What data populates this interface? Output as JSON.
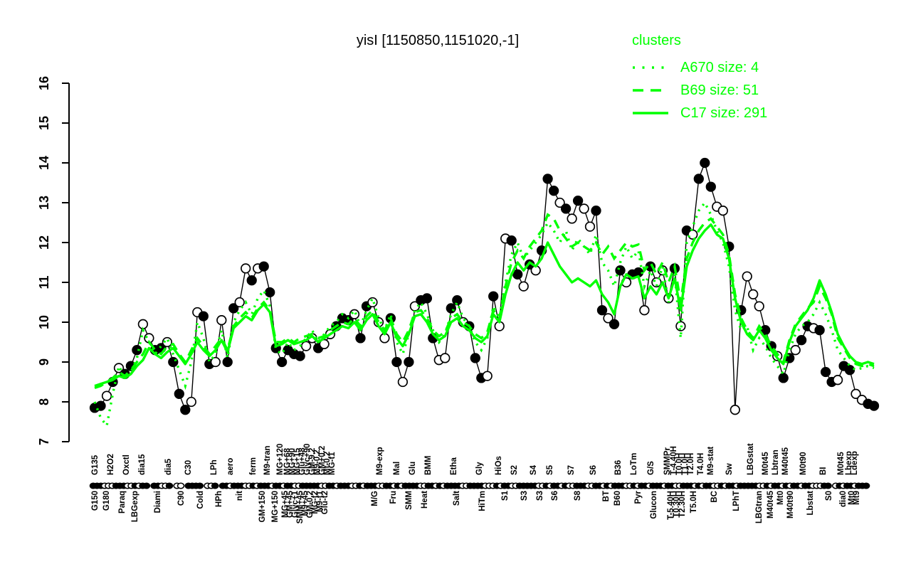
{
  "title": "yisI [1150850,1151020,-1]",
  "colors": {
    "cluster_green": "#00ff00",
    "series_black": "#000000",
    "background": "#ffffff"
  },
  "legend": {
    "title": "clusters",
    "items": [
      {
        "label": "A670 size: 4",
        "style": "dotted"
      },
      {
        "label": "B69 size: 51",
        "style": "dashed"
      },
      {
        "label": "C17 size: 291",
        "style": "solid"
      }
    ]
  },
  "y_axis": {
    "min": 7,
    "max": 16,
    "ticks": [
      7,
      8,
      9,
      10,
      11,
      12,
      13,
      14,
      15,
      16
    ]
  },
  "chart_data": {
    "type": "line",
    "title": "yisI [1150850,1151020,-1]",
    "ylabel": "",
    "xlabel": "",
    "ylim": [
      7,
      16
    ],
    "y_ticks": [
      7,
      8,
      9,
      10,
      11,
      12,
      13,
      14,
      15,
      16
    ],
    "grid": false,
    "legend_position": "top-right",
    "series": [
      {
        "name": "A670",
        "size": 4,
        "style": "dotted",
        "color": "#00ff00",
        "values": [
          8.0,
          7.6,
          7.4,
          8.2,
          8.9,
          8.6,
          8.75,
          9.1,
          9.8,
          9.5,
          9.2,
          9.4,
          9.6,
          9.2,
          8.8,
          8.4,
          9.0,
          10.0,
          9.6,
          9.0,
          9.2,
          9.8,
          9.1,
          10.0,
          10.3,
          10.5,
          10.2,
          10.6,
          10.8,
          10.4,
          9.3,
          9.2,
          9.5,
          9.3,
          9.4,
          9.6,
          9.8,
          9.5,
          9.7,
          9.9,
          10.0,
          10.2,
          10.1,
          10.3,
          9.9,
          10.3,
          10.6,
          10.1,
          9.8,
          10.2,
          9.5,
          9.2,
          9.7,
          10.3,
          10.5,
          10.2,
          9.8,
          9.5,
          9.7,
          10.2,
          10.5,
          10.1,
          9.9,
          9.5,
          9.3,
          9.6,
          10.4,
          10.1,
          11.0,
          11.7,
          12.0,
          11.6,
          11.8,
          12.0,
          12.2,
          12.5,
          12.3,
          12.0,
          12.3,
          11.8,
          12.1,
          11.9,
          11.7,
          12.2,
          11.5,
          11.3,
          10.9,
          11.5,
          11.9,
          11.6,
          11.8,
          10.9,
          11.3,
          10.9,
          11.4,
          10.5,
          11.2,
          9.6,
          12.0,
          12.4,
          12.8,
          13.0,
          12.7,
          12.3,
          12.0,
          11.4,
          10.3,
          9.8,
          9.9,
          9.3,
          9.6,
          9.4,
          9.1,
          8.9,
          8.7,
          9.3,
          9.7,
          9.9,
          10.0,
          10.2,
          10.5,
          10.2,
          9.8,
          9.3,
          9.1,
          8.9,
          8.8,
          8.85,
          8.9,
          8.85
        ]
      },
      {
        "name": "B69",
        "size": 51,
        "style": "dashed",
        "color": "#00ff00",
        "values": [
          8.35,
          8.4,
          8.5,
          8.6,
          8.75,
          8.65,
          8.8,
          9.0,
          9.2,
          9.5,
          9.3,
          9.2,
          9.4,
          9.45,
          9.2,
          9.0,
          9.3,
          9.6,
          9.4,
          9.2,
          9.4,
          9.6,
          9.3,
          9.9,
          10.1,
          10.25,
          10.1,
          10.35,
          10.5,
          10.3,
          9.5,
          9.5,
          9.6,
          9.5,
          9.6,
          9.65,
          9.7,
          9.6,
          9.65,
          9.8,
          9.9,
          10.0,
          9.95,
          10.1,
          9.9,
          10.15,
          10.3,
          10.0,
          9.8,
          10.1,
          9.7,
          9.5,
          9.8,
          10.25,
          10.3,
          10.1,
          9.8,
          9.65,
          9.75,
          10.1,
          10.2,
          10.0,
          9.9,
          9.7,
          9.6,
          9.75,
          10.3,
          10.1,
          10.9,
          11.5,
          11.8,
          11.6,
          11.9,
          12.1,
          12.3,
          12.7,
          12.6,
          12.3,
          12.1,
          11.9,
          12.0,
          11.9,
          11.8,
          12.0,
          11.7,
          11.9,
          11.6,
          11.8,
          12.0,
          11.9,
          11.95,
          11.3,
          11.5,
          11.2,
          11.5,
          11.0,
          11.4,
          10.5,
          11.6,
          12.0,
          12.3,
          12.5,
          12.6,
          12.4,
          12.2,
          11.7,
          10.7,
          10.1,
          9.8,
          9.6,
          9.9,
          9.7,
          9.4,
          9.2,
          9.0,
          9.55,
          9.95,
          10.15,
          10.35,
          10.5,
          10.9,
          10.6,
          10.2,
          9.6,
          9.35,
          9.1,
          8.95,
          8.9,
          8.95,
          8.9
        ]
      },
      {
        "name": "C17",
        "size": 291,
        "style": "solid",
        "color": "#00ff00",
        "values": [
          8.4,
          8.45,
          8.5,
          8.55,
          8.65,
          8.6,
          8.7,
          8.9,
          9.05,
          9.35,
          9.2,
          9.1,
          9.25,
          9.35,
          9.15,
          8.95,
          9.2,
          9.5,
          9.3,
          9.15,
          9.3,
          9.55,
          9.25,
          9.85,
          10.0,
          10.15,
          10.05,
          10.3,
          10.45,
          10.25,
          9.4,
          9.45,
          9.55,
          9.45,
          9.5,
          9.55,
          9.65,
          9.5,
          9.6,
          9.7,
          9.8,
          9.9,
          9.85,
          10.0,
          9.8,
          10.05,
          10.2,
          9.9,
          9.7,
          10.0,
          9.6,
          9.4,
          9.7,
          10.15,
          10.2,
          10.0,
          9.7,
          9.55,
          9.65,
          10.0,
          10.1,
          9.9,
          9.8,
          9.6,
          9.5,
          9.65,
          10.2,
          10.0,
          10.7,
          11.2,
          11.5,
          11.3,
          11.5,
          11.4,
          11.6,
          12.0,
          11.7,
          11.4,
          11.2,
          11.0,
          11.1,
          11.0,
          10.9,
          11.05,
          10.7,
          10.5,
          10.2,
          10.9,
          11.2,
          11.1,
          11.15,
          10.6,
          10.9,
          10.7,
          11.0,
          10.6,
          11.1,
          10.3,
          11.4,
          11.8,
          12.1,
          12.3,
          12.45,
          12.2,
          12.1,
          11.6,
          10.6,
          10.0,
          9.7,
          9.55,
          9.8,
          9.6,
          9.3,
          9.1,
          8.95,
          9.5,
          9.9,
          10.1,
          10.3,
          10.6,
          11.05,
          10.7,
          10.25,
          9.7,
          9.4,
          9.15,
          9.0,
          8.95,
          9.0,
          8.95
        ]
      },
      {
        "name": "yisI",
        "style": "points",
        "color": "#000000",
        "values": [
          7.85,
          7.9,
          8.15,
          8.5,
          8.85,
          8.7,
          8.9,
          9.3,
          9.95,
          9.6,
          9.3,
          9.35,
          9.5,
          9.0,
          8.2,
          7.8,
          8.0,
          10.25,
          10.15,
          8.95,
          9.0,
          10.05,
          9.0,
          10.35,
          10.5,
          11.35,
          11.05,
          11.35,
          11.4,
          10.75,
          9.35,
          9.0,
          9.3,
          9.2,
          9.15,
          9.4,
          9.6,
          9.35,
          9.45,
          9.7,
          9.9,
          10.1,
          10.05,
          10.2,
          9.6,
          10.4,
          10.5,
          10.0,
          9.6,
          10.1,
          9.0,
          8.5,
          9.0,
          10.4,
          10.55,
          10.6,
          9.6,
          9.05,
          9.1,
          10.35,
          10.55,
          10.0,
          9.9,
          9.1,
          8.6,
          8.65,
          10.65,
          9.9,
          12.1,
          12.05,
          11.2,
          10.9,
          11.45,
          11.3,
          11.8,
          13.6,
          13.3,
          13.0,
          12.85,
          12.6,
          13.05,
          12.85,
          12.4,
          12.8,
          10.3,
          10.1,
          9.95,
          11.3,
          11.0,
          11.2,
          11.25,
          10.3,
          11.4,
          11.0,
          11.3,
          10.6,
          11.35,
          9.9,
          12.3,
          12.2,
          13.6,
          14.0,
          13.4,
          12.9,
          12.8,
          11.9,
          7.8,
          10.3,
          11.15,
          10.7,
          10.4,
          9.8,
          9.4,
          9.15,
          8.6,
          9.1,
          9.3,
          9.55,
          9.9,
          9.85,
          9.8,
          8.75,
          8.5,
          8.55,
          8.9,
          8.8,
          8.2,
          8.05,
          7.95,
          7.9
        ],
        "marker_fill_groups": [
          "FFOFOFFFOO",
          "FFOFFFOOFF",
          "OOFFOOFOFF",
          "FFFFFOOFOO",
          "FFFOFFOOOF",
          "FOFOFFFOOF",
          "FOFFFOFOOF",
          "FOFOFFFOFO",
          "FOOFFOFFOF",
          "FOFOOOFOFO",
          "FFFOOFOFOO",
          "OFFOFFOFFO",
          "FFFOFFOOFF"
        ]
      }
    ],
    "x_axis": {
      "bead_pattern_groups": [
        "fffoo",
        "offfo",
        "ofoff",
        ".ffoo",
        "f.oo.",
        "ffff.",
        "oof.f",
        "fofff",
        "oofof",
        "ffoff",
        "offoo",
        "fffff",
        "ooffo",
        "fffoo",
        "fofff",
        "ooffo",
        "fofff",
        "fooff",
        "ofoff",
        "ffoof",
        "fffoo",
        "ofoff",
        "oofff",
        "ffoof",
        "offof",
        "oofff",
        "ooffo",
        "fofff",
        "oofof",
        "fofff",
        "offoo",
        "fffof",
        "offoo",
        "foffo",
        "fffff",
        "oofof",
        "fofof",
        "foffo",
        "ooff.",
        "ofoff",
        "offf."
      ],
      "top_labels": [
        [
          137,
          "G135"
        ],
        [
          159,
          "H2O2"
        ],
        [
          181,
          "Oxctl"
        ],
        [
          203,
          "dia15"
        ],
        [
          240,
          "dia5"
        ],
        [
          268,
          "C30"
        ],
        [
          304,
          "LPh"
        ],
        [
          327,
          "aero"
        ],
        [
          359,
          "ferm"
        ],
        [
          379,
          "M9-tran"
        ],
        [
          397,
          "MG+120"
        ],
        [
          407,
          "MG+68"
        ],
        [
          414,
          "MG+90"
        ],
        [
          421,
          "MG+15"
        ],
        [
          428,
          "Glu+48"
        ],
        [
          435,
          "Glyc+90"
        ],
        [
          442,
          "GM-9.2"
        ],
        [
          449,
          "M9-0.2"
        ],
        [
          456,
          "GM+0.2"
        ],
        [
          463,
          "Mt-0.2"
        ],
        [
          470,
          "MG-t1"
        ],
        [
          537,
          "M9-exp"
        ],
        [
          561,
          "Mal"
        ],
        [
          583,
          "Glu"
        ],
        [
          605,
          "BMM"
        ],
        [
          641,
          "Etha"
        ],
        [
          677,
          "Gly"
        ],
        [
          704,
          "HiOs"
        ],
        [
          726,
          "S2"
        ],
        [
          753,
          "S4"
        ],
        [
          776,
          "S5"
        ],
        [
          806,
          "S7"
        ],
        [
          837,
          "S6"
        ],
        [
          872,
          "B36"
        ],
        [
          894,
          "LoTm"
        ],
        [
          918,
          "G/S"
        ],
        [
          941,
          "SMMPr"
        ],
        [
          950,
          "T-4.40H"
        ],
        [
          958,
          "T0.0H"
        ],
        [
          966,
          "T1.0H"
        ],
        [
          974,
          "T2.0H"
        ],
        [
          988,
          "T4.0H"
        ],
        [
          1002,
          "M9-stat"
        ],
        [
          1028,
          "Sw"
        ],
        [
          1058,
          "LBGstat"
        ],
        [
          1079,
          "M0t45"
        ],
        [
          1093,
          "Lbtran"
        ],
        [
          1107,
          "M40t45"
        ],
        [
          1132,
          "M0t90"
        ],
        [
          1160,
          "BI"
        ],
        [
          1185,
          "M0t45"
        ],
        [
          1196,
          "Lbexp"
        ],
        [
          1204,
          "Ldexp"
        ]
      ],
      "bottom_labels": [
        [
          137,
          "G150"
        ],
        [
          153,
          "G180"
        ],
        [
          175,
          "Paraq"
        ],
        [
          193,
          "LBGexp"
        ],
        [
          225,
          "Diami"
        ],
        [
          258,
          "C90"
        ],
        [
          285,
          "Cold"
        ],
        [
          311,
          "HPh"
        ],
        [
          340,
          "nit"
        ],
        [
          372,
          "GM+150"
        ],
        [
          390,
          "MG+150"
        ],
        [
          404,
          "MG+45"
        ],
        [
          411,
          "GM+45"
        ],
        [
          418,
          "Glyc+1"
        ],
        [
          425,
          "SMM+45"
        ],
        [
          432,
          "M9+45"
        ],
        [
          439,
          "GM-0.2"
        ],
        [
          446,
          "MG-t2"
        ],
        [
          453,
          "M9-t1"
        ],
        [
          460,
          "Glu-t2"
        ],
        [
          530,
          "M/G"
        ],
        [
          556,
          "Fru"
        ],
        [
          578,
          "SMM"
        ],
        [
          600,
          "Heat"
        ],
        [
          645,
          "Salt"
        ],
        [
          681,
          "HiTm"
        ],
        [
          713,
          "S1"
        ],
        [
          740,
          "S3"
        ],
        [
          762,
          "S3"
        ],
        [
          783,
          "S6"
        ],
        [
          815,
          "S8"
        ],
        [
          855,
          "BT"
        ],
        [
          871,
          "B60"
        ],
        [
          900,
          "Pyr"
        ],
        [
          922,
          "Glucon"
        ],
        [
          946,
          "T-5.40H"
        ],
        [
          954,
          "T0.30H"
        ],
        [
          962,
          "T2.30H"
        ],
        [
          978,
          "T5.0H"
        ],
        [
          1007,
          "BC"
        ],
        [
          1038,
          "LPhT"
        ],
        [
          1070,
          "LBGtran"
        ],
        [
          1086,
          "M40t45"
        ],
        [
          1100,
          "Mt0"
        ],
        [
          1114,
          "M40t90"
        ],
        [
          1142,
          "Lbstat"
        ],
        [
          1168,
          "S0"
        ],
        [
          1188,
          "dia0"
        ],
        [
          1200,
          "Mt0"
        ],
        [
          1207,
          "Mt9"
        ]
      ]
    }
  }
}
